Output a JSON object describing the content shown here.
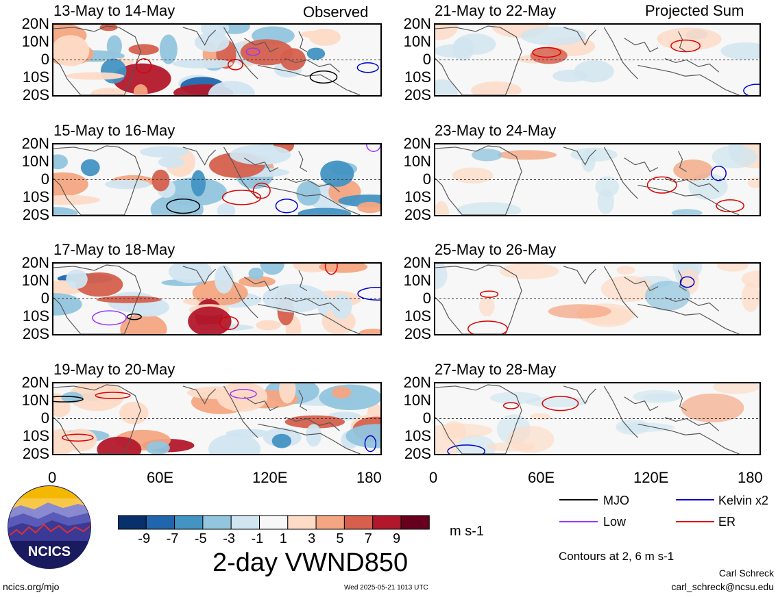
{
  "header": {
    "left_label": "Observed",
    "right_label": "Projected Sum"
  },
  "panels_left": [
    "13-May to 14-May",
    "15-May to 16-May",
    "17-May to 18-May",
    "19-May to 20-May"
  ],
  "panels_right": [
    "21-May to 22-May",
    "23-May to 24-May",
    "25-May to 26-May",
    "27-May to 28-May"
  ],
  "y_ticks": [
    "20N",
    "10N",
    "0",
    "10S",
    "20S"
  ],
  "x_ticks": [
    "0",
    "60E",
    "120E",
    "180"
  ],
  "colorbar": {
    "title": "2-day VWND850",
    "units": "m s-1",
    "labels": [
      "-9",
      "-7",
      "-5",
      "-3",
      "-1",
      "1",
      "3",
      "5",
      "7",
      "9"
    ],
    "colors": [
      "#08306b",
      "#2166ac",
      "#4393c3",
      "#92c5de",
      "#d1e5f0",
      "#f7f7f7",
      "#fddbc7",
      "#f4a582",
      "#d6604d",
      "#b2182b",
      "#67001f"
    ]
  },
  "legend": [
    {
      "label": "MJO",
      "color": "#000000"
    },
    {
      "label": "Kelvin x2",
      "color": "#0000cc"
    },
    {
      "label": "Low",
      "color": "#9933ff"
    },
    {
      "label": "ER",
      "color": "#dd0000"
    }
  ],
  "contour_note": "Contours at 2, 6 m s-1",
  "credits": {
    "author": "Carl Schreck",
    "email": "carl_schreck@ncsu.edu",
    "site": "ncics.org/mjo",
    "timestamp": "Wed 2025-05-21 1013 UTC",
    "logo_text": "NCICS"
  },
  "chart_data": {
    "type": "heatmap",
    "variable": "2-day VWND850",
    "units": "m s-1",
    "x_range": [
      0,
      180
    ],
    "y_range": [
      -20,
      20
    ],
    "x_ticks": [
      "0",
      "60E",
      "120E",
      "180"
    ],
    "y_ticks": [
      "20N",
      "10N",
      "0",
      "10S",
      "20S"
    ],
    "color_levels": [
      -9,
      -7,
      -5,
      -3,
      -1,
      1,
      3,
      5,
      7,
      9
    ],
    "contour_levels": [
      2,
      6
    ],
    "contour_types": [
      "MJO",
      "Kelvin x2",
      "Low",
      "ER"
    ],
    "panels": [
      "13-May to 14-May",
      "15-May to 16-May",
      "17-May to 18-May",
      "19-May to 20-May",
      "21-May to 22-May",
      "23-May to 24-May",
      "25-May to 26-May",
      "27-May to 28-May"
    ]
  }
}
